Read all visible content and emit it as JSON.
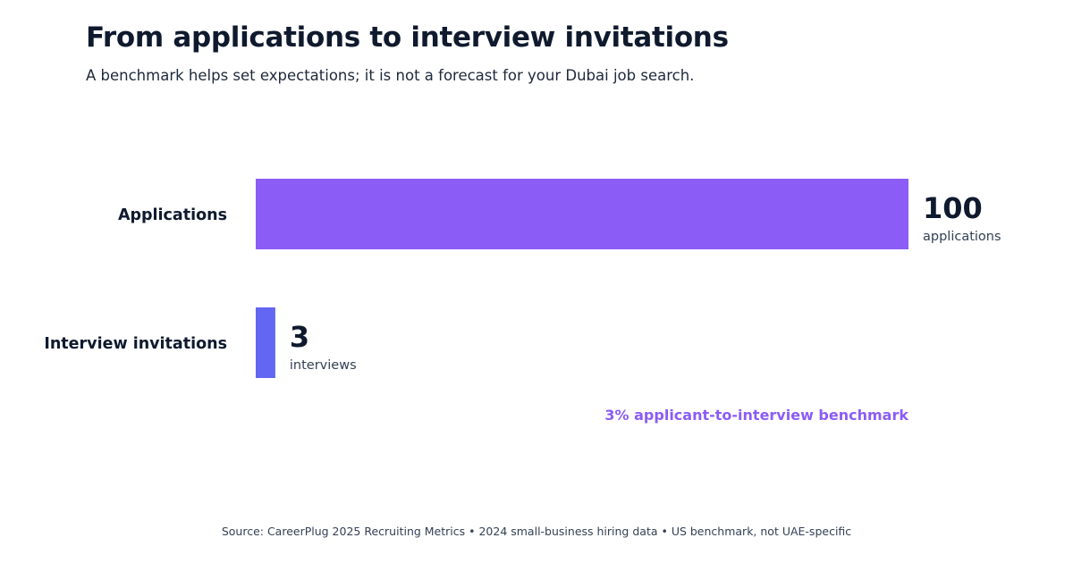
{
  "header": {
    "title": "From applications to interview invitations",
    "subtitle": "A benchmark helps set expectations; it is not a forecast for your Dubai job search."
  },
  "chart_data": {
    "type": "bar",
    "orientation": "horizontal",
    "categories": [
      "Applications",
      "Interview invitations"
    ],
    "values": [
      100,
      3
    ],
    "value_units": [
      "applications",
      "interviews"
    ],
    "colors": [
      "#8b5cf6",
      "#6366f1"
    ],
    "xlim": [
      0,
      100
    ],
    "grid": false,
    "annotation": "3% applicant-to-interview benchmark",
    "annotation_color": "#8b5cf6"
  },
  "footer": {
    "source": "Source: CareerPlug 2025 Recruiting Metrics • 2024 small-business hiring data • US benchmark, not UAE-specific"
  }
}
